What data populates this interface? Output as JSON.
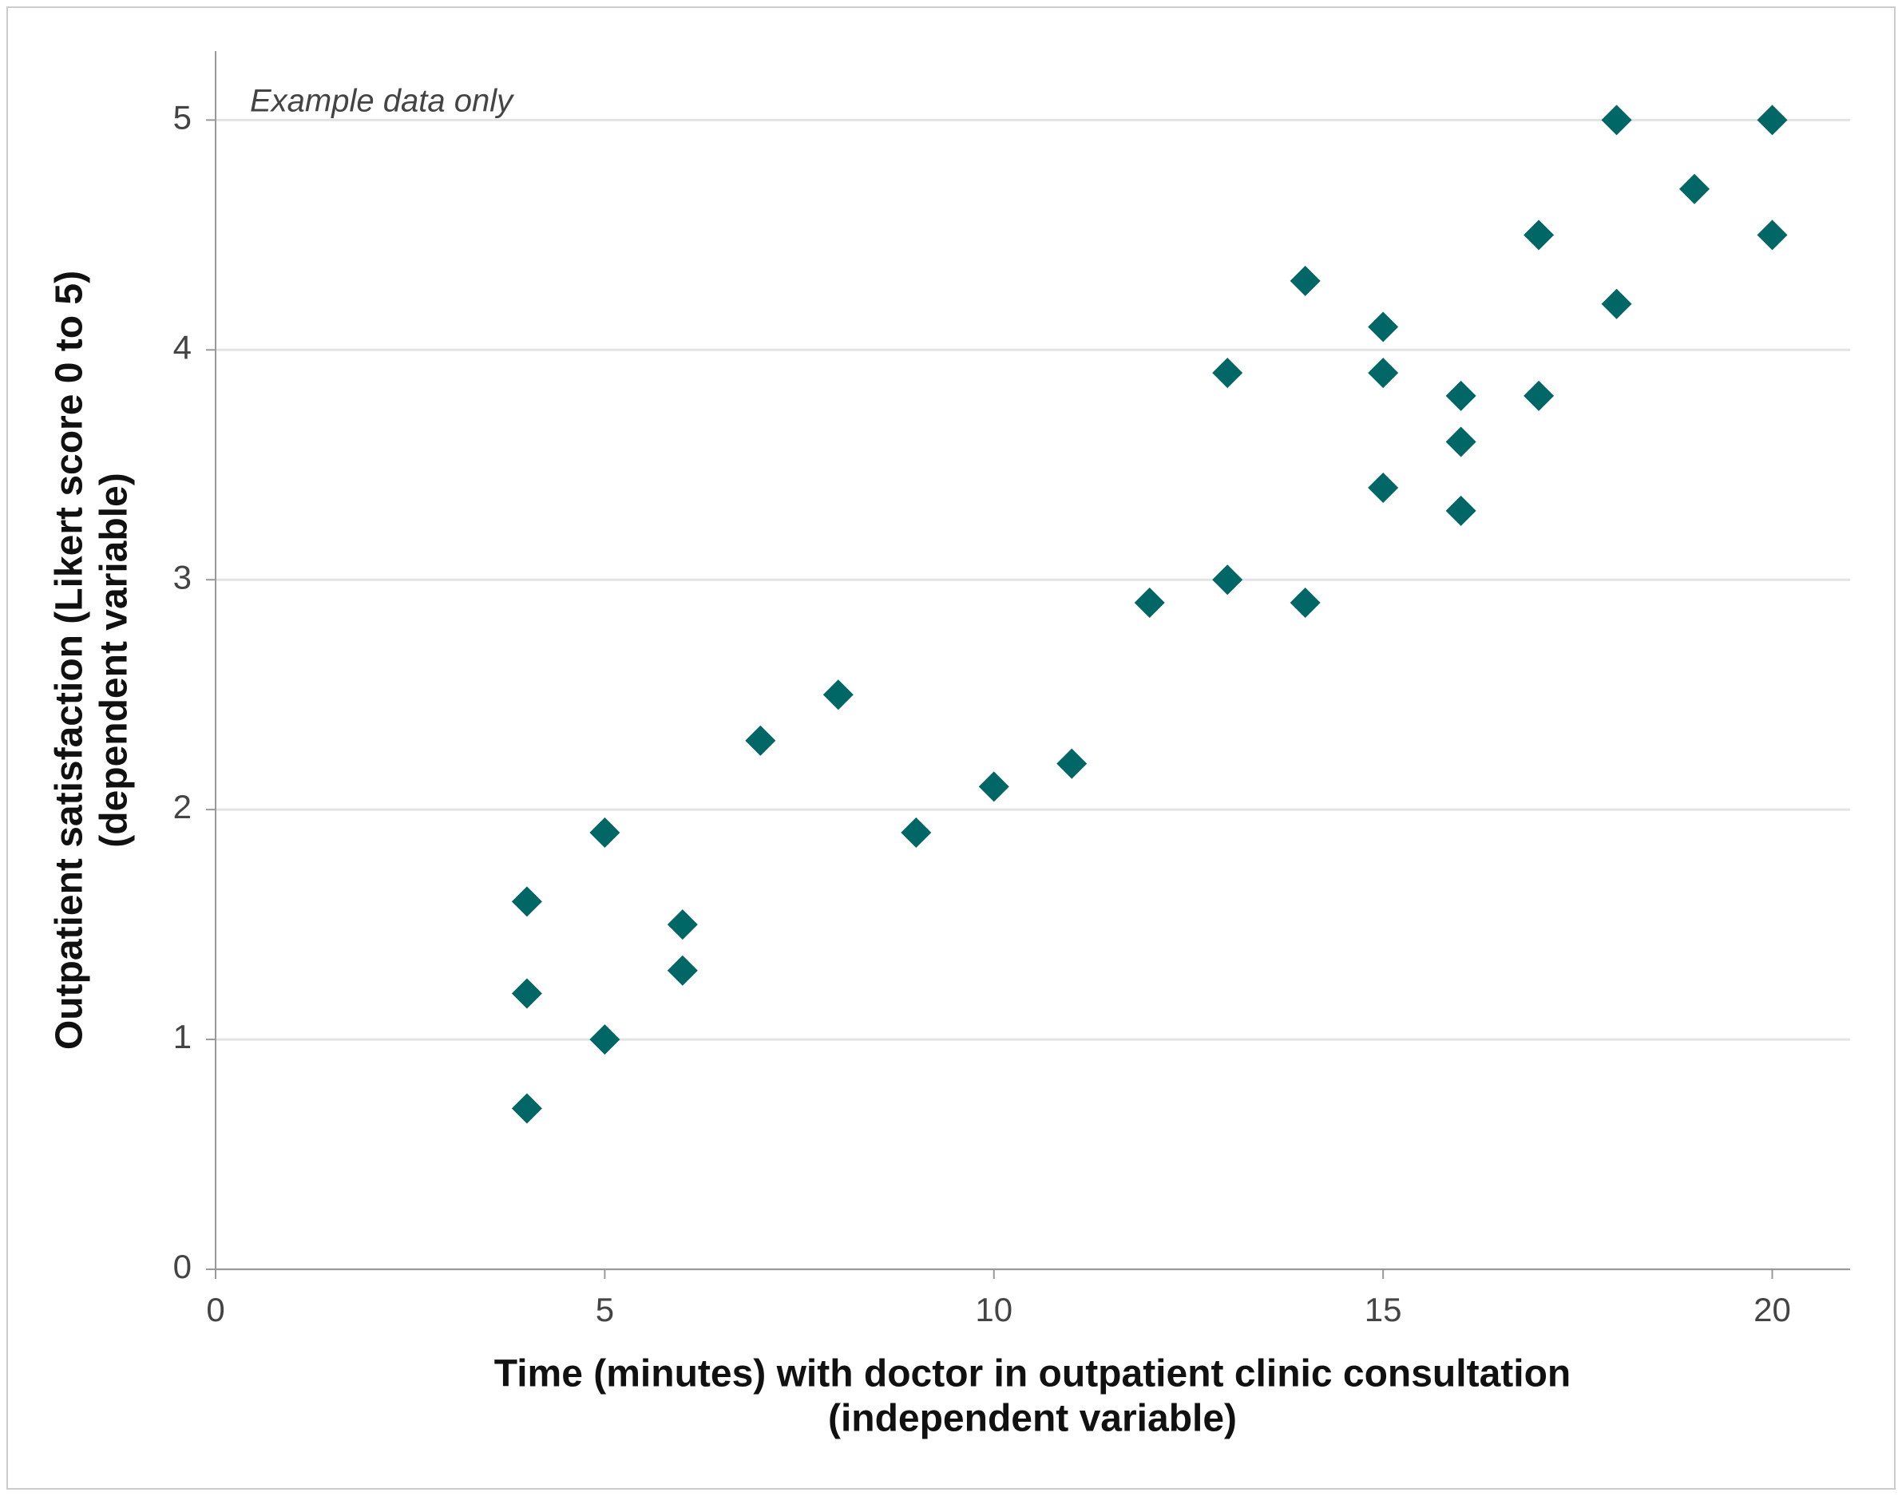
{
  "chart_data": {
    "type": "scatter",
    "annotation": "Example data only",
    "xlabel": [
      "Time (minutes) with doctor in outpatient clinic consultation",
      "(independent variable)"
    ],
    "ylabel": [
      "Outpatient satisfaction (Likert score 0 to 5)",
      "(dependent variable)"
    ],
    "x": [
      4,
      4,
      4,
      5,
      5,
      6,
      6,
      7,
      8,
      9,
      10,
      11,
      12,
      13,
      13,
      14,
      14,
      15,
      15,
      15,
      16,
      16,
      16,
      17,
      17,
      18,
      18,
      19,
      20,
      20
    ],
    "values": [
      1.6,
      1.2,
      0.7,
      1.9,
      1.0,
      1.5,
      1.3,
      2.3,
      2.5,
      1.9,
      2.1,
      2.2,
      2.9,
      3.9,
      3.0,
      4.3,
      2.9,
      4.1,
      3.9,
      3.4,
      3.8,
      3.6,
      3.3,
      4.5,
      3.8,
      5.0,
      4.2,
      4.7,
      5.0,
      4.5
    ],
    "color": "#006666",
    "xlim": [
      0,
      21
    ],
    "ylim": [
      0,
      5.3
    ],
    "xticks": [
      0,
      5,
      10,
      15,
      20
    ],
    "yticks": [
      0,
      1,
      2,
      3,
      4,
      5
    ],
    "grid": true
  }
}
